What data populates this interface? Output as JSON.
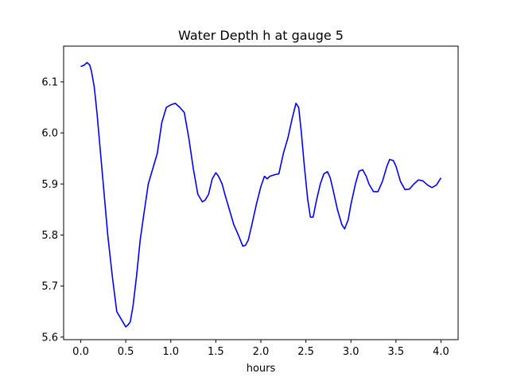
{
  "chart_data": {
    "type": "line",
    "title": "Water Depth h at gauge 5",
    "xlabel": "hours",
    "ylabel": "",
    "xlim": [
      -0.19,
      4.19
    ],
    "ylim": [
      5.595,
      6.17
    ],
    "x_ticks": [
      0.0,
      0.5,
      1.0,
      1.5,
      2.0,
      2.5,
      3.0,
      3.5,
      4.0
    ],
    "x_tick_labels": [
      "0.0",
      "0.5",
      "1.0",
      "1.5",
      "2.0",
      "2.5",
      "3.0",
      "3.5",
      "4.0"
    ],
    "y_ticks": [
      5.6,
      5.7,
      5.8,
      5.9,
      6.0,
      6.1
    ],
    "y_tick_labels": [
      "5.6",
      "5.7",
      "5.8",
      "5.9",
      "6.0",
      "6.1"
    ],
    "grid": false,
    "series": [
      {
        "color": "#0000ff",
        "x": [
          0.0,
          0.04,
          0.07,
          0.1,
          0.12,
          0.15,
          0.18,
          0.21,
          0.25,
          0.3,
          0.35,
          0.4,
          0.45,
          0.5,
          0.53,
          0.55,
          0.58,
          0.62,
          0.66,
          0.7,
          0.75,
          0.8,
          0.85,
          0.9,
          0.95,
          1.0,
          1.05,
          1.1,
          1.15,
          1.2,
          1.25,
          1.3,
          1.35,
          1.38,
          1.42,
          1.46,
          1.5,
          1.53,
          1.57,
          1.6,
          1.65,
          1.7,
          1.75,
          1.8,
          1.83,
          1.86,
          1.9,
          1.95,
          2.0,
          2.04,
          2.07,
          2.1,
          2.15,
          2.2,
          2.25,
          2.3,
          2.35,
          2.39,
          2.42,
          2.45,
          2.48,
          2.52,
          2.55,
          2.58,
          2.62,
          2.66,
          2.7,
          2.74,
          2.77,
          2.8,
          2.85,
          2.9,
          2.93,
          2.97,
          3.0,
          3.05,
          3.09,
          3.13,
          3.17,
          3.2,
          3.25,
          3.3,
          3.35,
          3.4,
          3.43,
          3.47,
          3.5,
          3.55,
          3.6,
          3.65,
          3.7,
          3.75,
          3.8,
          3.85,
          3.9,
          3.95,
          4.0
        ],
        "y": [
          6.13,
          6.133,
          6.138,
          6.133,
          6.12,
          6.09,
          6.04,
          5.98,
          5.9,
          5.8,
          5.72,
          5.65,
          5.635,
          5.62,
          5.625,
          5.63,
          5.66,
          5.72,
          5.79,
          5.84,
          5.9,
          5.93,
          5.96,
          6.02,
          6.05,
          6.055,
          6.058,
          6.05,
          6.04,
          5.99,
          5.93,
          5.88,
          5.865,
          5.868,
          5.88,
          5.91,
          5.922,
          5.915,
          5.9,
          5.88,
          5.85,
          5.82,
          5.8,
          5.778,
          5.78,
          5.79,
          5.82,
          5.86,
          5.895,
          5.915,
          5.91,
          5.915,
          5.918,
          5.92,
          5.96,
          5.99,
          6.03,
          6.058,
          6.05,
          6.0,
          5.94,
          5.87,
          5.835,
          5.835,
          5.87,
          5.9,
          5.92,
          5.924,
          5.912,
          5.89,
          5.85,
          5.82,
          5.812,
          5.83,
          5.86,
          5.9,
          5.925,
          5.928,
          5.915,
          5.9,
          5.885,
          5.885,
          5.905,
          5.935,
          5.948,
          5.946,
          5.935,
          5.905,
          5.889,
          5.89,
          5.9,
          5.908,
          5.906,
          5.898,
          5.893,
          5.898,
          5.912
        ]
      }
    ]
  }
}
